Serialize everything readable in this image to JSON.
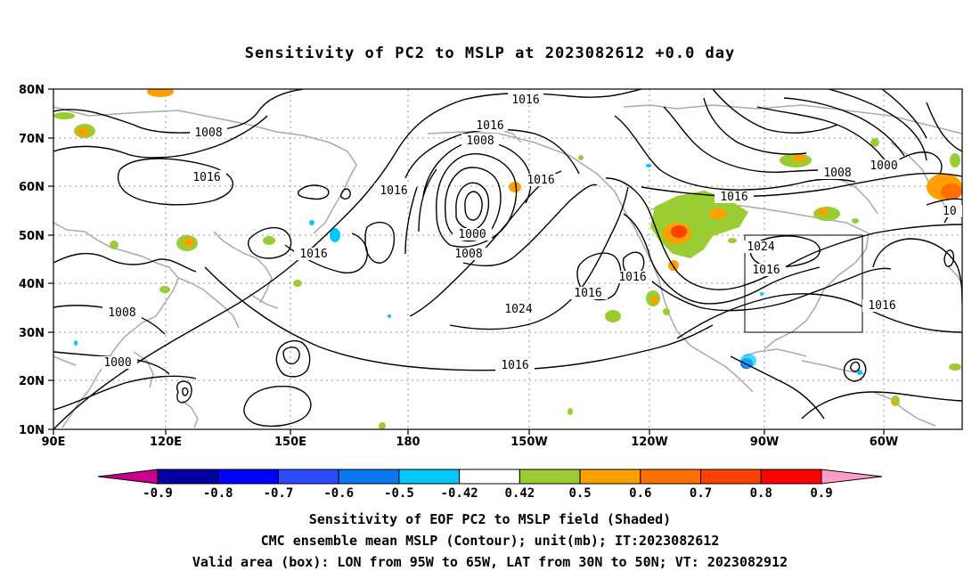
{
  "title": "Sensitivity of PC2 to MSLP at 2023082612 +0.0 day",
  "axes": {
    "lat_labels": [
      "80N",
      "70N",
      "60N",
      "50N",
      "40N",
      "30N",
      "20N",
      "10N"
    ],
    "lon_labels": [
      "90E",
      "120E",
      "150E",
      "180",
      "150W",
      "120W",
      "90W",
      "60W"
    ]
  },
  "contour_labels": {
    "c1016_a": "1016",
    "c1016_b": "1016",
    "c1016_c": "1016",
    "c1016_d": "1016",
    "c1016_e": "1016",
    "c1016_f": "1016",
    "c1016_g": "1016",
    "c1016_h": "1016",
    "c1016_i": "1016",
    "c1016_j": "1016",
    "c1016_k": "1016",
    "c1016_l": "1016",
    "c1008_a": "1008",
    "c1008_b": "1008",
    "c1008_c": "1008",
    "c1008_d": "1008",
    "c1000_a": "1000",
    "c1000_b": "1000",
    "c1000_c": "1000",
    "c1024_a": "1024",
    "c1024_b": "1024",
    "c10_edge": "10"
  },
  "valid_box": {
    "lon_from": "95W",
    "lon_to": "65W",
    "lat_from": "30N",
    "lat_to": "50N"
  },
  "colorbar": {
    "labels": [
      "-0.9",
      "-0.8",
      "-0.7",
      "-0.6",
      "-0.5",
      "-0.42",
      "0.42",
      "0.5",
      "0.6",
      "0.7",
      "0.8",
      "0.9"
    ],
    "colors": {
      "below": "#c8008c",
      "bins": [
        "#0000a0",
        "#0000ff",
        "#2a4bff",
        "#0a78f0",
        "#00c8ff",
        "#ffffff",
        "#9acd32",
        "#ffa000",
        "#ff7000",
        "#ff4000",
        "#ff0000"
      ],
      "above": "#ff9cc8"
    }
  },
  "captions": {
    "line1": "Sensitivity of EOF PC2 to MSLP field (Shaded)",
    "line2": "CMC ensemble mean MSLP (Contour); unit(mb); IT:2023082612",
    "line3": "Valid area (box): LON from 95W to 65W, LAT from 30N to 50N; VT: 2023082912"
  }
}
